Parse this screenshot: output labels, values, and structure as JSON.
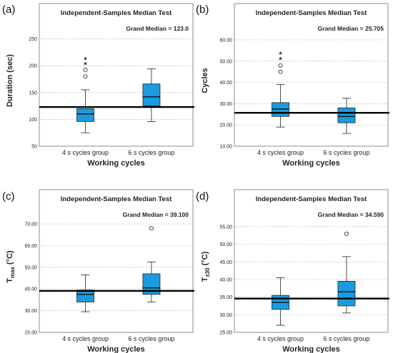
{
  "chart_data": [
    {
      "type": "box",
      "panel_letter": "(a)",
      "title": "Independent-Samples Median Test",
      "grand_median_label": "Grand Median = 123.0",
      "grand_median": 123.0,
      "ylabel": "Duration (sec)",
      "ylabel_sub": "",
      "ylabel_after": "",
      "xlabel": "Working cycles",
      "ylim": [
        50,
        260
      ],
      "yticks": [
        50,
        100,
        150,
        200,
        250
      ],
      "ytick_labels": [
        "50",
        "100",
        "150",
        "200",
        "250"
      ],
      "categories": [
        "4 s cycles group",
        "6 s cycles group"
      ],
      "boxes": [
        {
          "whisker_low": 75,
          "q1": 96,
          "median": 110,
          "q3": 120,
          "whisker_high": 155,
          "outliers": [
            180,
            192
          ],
          "extremes": [
            203,
            212
          ]
        },
        {
          "whisker_low": 96,
          "q1": 125,
          "median": 142,
          "q3": 166,
          "whisker_high": 194,
          "outliers": [],
          "extremes": []
        }
      ]
    },
    {
      "type": "box",
      "panel_letter": "(b)",
      "title": "Independent-Samples Median Test",
      "grand_median_label": "Grand Median = 25.705",
      "grand_median": 25.705,
      "ylabel": "Cycles",
      "ylabel_sub": "",
      "ylabel_after": "",
      "xlabel": "Working cycles",
      "ylim": [
        10,
        63
      ],
      "yticks": [
        10,
        20,
        30,
        40,
        50,
        60
      ],
      "ytick_labels": [
        "10.00",
        "20.00",
        "30.00",
        "40.00",
        "50.00",
        "60.00"
      ],
      "categories": [
        "4 s cycles group",
        "6 s cycles group"
      ],
      "boxes": [
        {
          "whisker_low": 19,
          "q1": 24,
          "median": 27.5,
          "q3": 30.5,
          "whisker_high": 39,
          "outliers": [
            45,
            48
          ],
          "extremes": [
            51,
            53.5
          ]
        },
        {
          "whisker_low": 16,
          "q1": 21,
          "median": 24,
          "q3": 28,
          "whisker_high": 32.5,
          "outliers": [],
          "extremes": []
        }
      ]
    },
    {
      "type": "box",
      "panel_letter": "(c)",
      "title": "Independent-Samples Median Test",
      "grand_median_label": "Grand Median = 39.100",
      "grand_median": 39.1,
      "ylabel": "T",
      "ylabel_sub": "max",
      "ylabel_after": " (°C)",
      "xlabel": "Working cycles",
      "ylim": [
        20,
        72
      ],
      "yticks": [
        20,
        30,
        40,
        50,
        60,
        70
      ],
      "ytick_labels": [
        "20.00",
        "30.00",
        "40.00",
        "50.00",
        "60.00",
        "70.00"
      ],
      "categories": [
        "4 s cycles group",
        "6 s cycles group"
      ],
      "boxes": [
        {
          "whisker_low": 29.5,
          "q1": 34,
          "median": 37.5,
          "q3": 39.5,
          "whisker_high": 46.5,
          "outliers": [],
          "extremes": []
        },
        {
          "whisker_low": 34,
          "q1": 37.5,
          "median": 40.5,
          "q3": 47,
          "whisker_high": 52.5,
          "outliers": [
            68
          ],
          "extremes": []
        }
      ]
    },
    {
      "type": "box",
      "panel_letter": "(d)",
      "title": "Independent-Samples Median Test",
      "grand_median_label": "Grand Median = 34.590",
      "grand_median": 34.59,
      "ylabel": "T",
      "ylabel_sub": "±30",
      "ylabel_after": " (°C)",
      "xlabel": "Working cycles",
      "ylim": [
        25,
        57
      ],
      "yticks": [
        25,
        30,
        35,
        40,
        45,
        50,
        55
      ],
      "ytick_labels": [
        "25.00",
        "30.00",
        "35.00",
        "40.00",
        "45.00",
        "50.00",
        "55.00"
      ],
      "categories": [
        "4 s cycles group",
        "6 s cycles group"
      ],
      "boxes": [
        {
          "whisker_low": 27,
          "q1": 31.5,
          "median": 33.5,
          "q3": 35.5,
          "whisker_high": 40.5,
          "outliers": [],
          "extremes": []
        },
        {
          "whisker_low": 30.5,
          "q1": 32.5,
          "median": 36.5,
          "q3": 39.5,
          "whisker_high": 46.5,
          "outliers": [
            53
          ],
          "extremes": []
        }
      ]
    }
  ]
}
